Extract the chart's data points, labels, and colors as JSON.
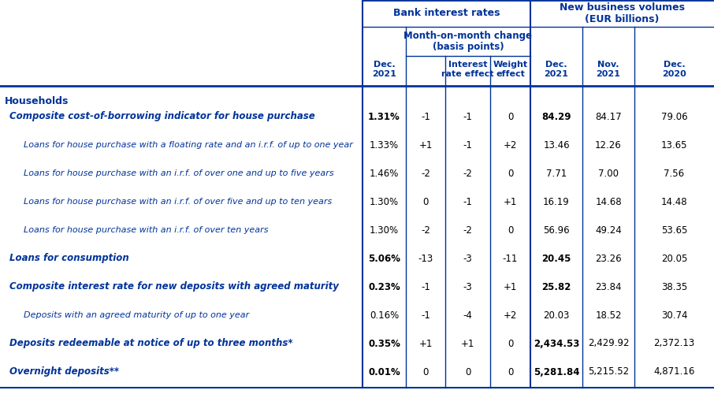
{
  "blue": "#003399",
  "black": "#000000",
  "white": "#ffffff",
  "figsize": [
    9.06,
    5.14
  ],
  "dpi": 100,
  "col_header_bank": "Bank interest rates",
  "col_header_nbv": "New business volumes\n(EUR billions)",
  "col_subheader_mom": "Month-on-month change\n(basis points)",
  "section_label": "Households",
  "col_labels_rate": "Dec.\n2021",
  "col_labels_mom": "",
  "col_labels_int": "Interest\nrate effect",
  "col_labels_wt": "Weight\neffect",
  "col_labels_dec21": "Dec.\n2021",
  "col_labels_nov21": "Nov.\n2021",
  "col_labels_dec20": "Dec.\n2020",
  "rows": [
    {
      "label": "Composite cost-of-borrowing indicator for house purchase",
      "indent": 1,
      "bold": true,
      "italic": true,
      "rate": "1.31%",
      "mom": "-1",
      "int_eff": "-1",
      "wt_eff": "0",
      "dec21": "84.29",
      "nov21": "84.17",
      "dec20": "79.06"
    },
    {
      "label": "Loans for house purchase with a floating rate and an i.r.f. of up to one year",
      "indent": 2,
      "bold": false,
      "italic": true,
      "rate": "1.33%",
      "mom": "+1",
      "int_eff": "-1",
      "wt_eff": "+2",
      "dec21": "13.46",
      "nov21": "12.26",
      "dec20": "13.65"
    },
    {
      "label": "Loans for house purchase with an i.r.f. of over one and up to five years",
      "indent": 2,
      "bold": false,
      "italic": true,
      "rate": "1.46%",
      "mom": "-2",
      "int_eff": "-2",
      "wt_eff": "0",
      "dec21": "7.71",
      "nov21": "7.00",
      "dec20": "7.56"
    },
    {
      "label": "Loans for house purchase with an i.r.f. of over five and up to ten years",
      "indent": 2,
      "bold": false,
      "italic": true,
      "rate": "1.30%",
      "mom": "0",
      "int_eff": "-1",
      "wt_eff": "+1",
      "dec21": "16.19",
      "nov21": "14.68",
      "dec20": "14.48"
    },
    {
      "label": "Loans for house purchase with an i.r.f. of over ten years",
      "indent": 2,
      "bold": false,
      "italic": true,
      "rate": "1.30%",
      "mom": "-2",
      "int_eff": "-2",
      "wt_eff": "0",
      "dec21": "56.96",
      "nov21": "49.24",
      "dec20": "53.65"
    },
    {
      "label": "Loans for consumption",
      "indent": 1,
      "bold": true,
      "italic": true,
      "rate": "5.06%",
      "mom": "-13",
      "int_eff": "-3",
      "wt_eff": "-11",
      "dec21": "20.45",
      "nov21": "23.26",
      "dec20": "20.05"
    },
    {
      "label": "Composite interest rate for new deposits with agreed maturity",
      "indent": 1,
      "bold": true,
      "italic": true,
      "rate": "0.23%",
      "mom": "-1",
      "int_eff": "-3",
      "wt_eff": "+1",
      "dec21": "25.82",
      "nov21": "23.84",
      "dec20": "38.35"
    },
    {
      "label": "Deposits with an agreed maturity of up to one year",
      "indent": 2,
      "bold": false,
      "italic": true,
      "rate": "0.16%",
      "mom": "-1",
      "int_eff": "-4",
      "wt_eff": "+2",
      "dec21": "20.03",
      "nov21": "18.52",
      "dec20": "30.74"
    },
    {
      "label": "Deposits redeemable at notice of up to three months*",
      "indent": 1,
      "bold": true,
      "italic": true,
      "rate": "0.35%",
      "mom": "+1",
      "int_eff": "+1",
      "wt_eff": "0",
      "dec21": "2,434.53",
      "nov21": "2,429.92",
      "dec20": "2,372.13"
    },
    {
      "label": "Overnight deposits**",
      "indent": 1,
      "bold": true,
      "italic": true,
      "rate": "0.01%",
      "mom": "0",
      "int_eff": "0",
      "wt_eff": "0",
      "dec21": "5,281.84",
      "nov21": "5,215.52",
      "dec20": "4,871.16"
    }
  ]
}
